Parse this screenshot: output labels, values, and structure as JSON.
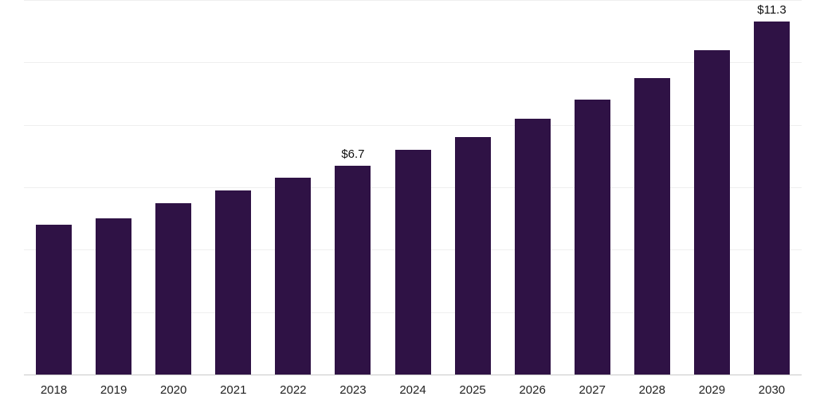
{
  "chart_data": {
    "type": "bar",
    "title": "",
    "xlabel": "",
    "ylabel": "",
    "categories": [
      "2018",
      "2019",
      "2020",
      "2021",
      "2022",
      "2023",
      "2024",
      "2025",
      "2026",
      "2027",
      "2028",
      "2029",
      "2030"
    ],
    "values": [
      4.8,
      5.0,
      5.5,
      5.9,
      6.3,
      6.7,
      7.2,
      7.6,
      8.2,
      8.8,
      9.5,
      10.4,
      11.3
    ],
    "bar_labels": [
      "",
      "",
      "",
      "",
      "",
      "$6.7",
      "",
      "",
      "",
      "",
      "",
      "",
      "$11.3"
    ],
    "ylim": [
      0,
      12
    ],
    "gridline_values": [
      2,
      4,
      6,
      8,
      10,
      12
    ],
    "grid_on": true,
    "legend": "none",
    "bar_color": "#2f1245",
    "grid_color": "#efefef",
    "axis_color": "#c9c9c9",
    "label_color": "#111111",
    "tick_color": "#222222"
  }
}
